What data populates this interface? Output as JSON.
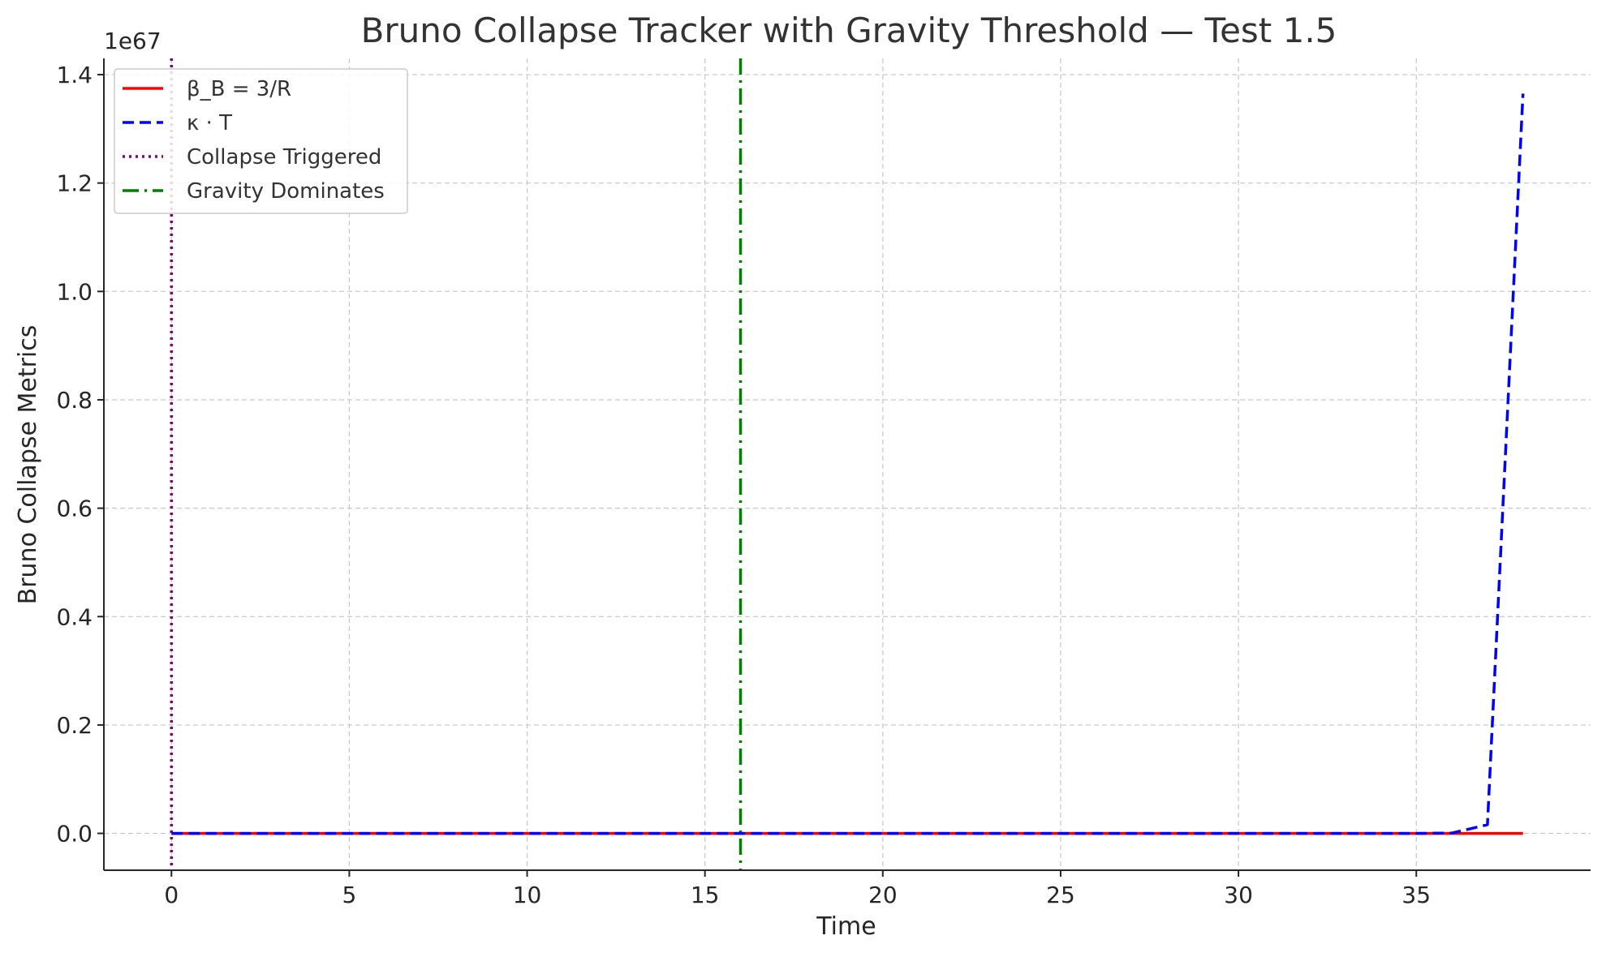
{
  "chart_data": {
    "type": "line",
    "title": "Bruno Collapse Tracker with Gravity Threshold — Test 1.5",
    "xlabel": "Time",
    "ylabel": "Bruno Collapse Metrics",
    "y_offset_label": "1e67",
    "y_scale_factor": 1e+67,
    "xlim": [
      -1.9,
      39.9
    ],
    "ylim": [
      -0.068,
      1.43
    ],
    "x_ticks": [
      0,
      5,
      10,
      15,
      20,
      25,
      30,
      35
    ],
    "y_ticks": [
      0.0,
      0.2,
      0.4,
      0.6,
      0.8,
      1.0,
      1.2,
      1.4
    ],
    "y_tick_labels": [
      "0.0",
      "0.2",
      "0.4",
      "0.6",
      "0.8",
      "1.0",
      "1.2",
      "1.4"
    ],
    "grid": true,
    "legend_position": "top-left",
    "series": [
      {
        "name": "β_B = 3/R",
        "style": "solid",
        "color": "#ff0000",
        "x": [
          0,
          5,
          10,
          15,
          20,
          25,
          30,
          35,
          36,
          37,
          38
        ],
        "y": [
          0,
          0,
          0,
          0,
          0,
          0,
          0,
          0,
          0,
          0,
          0
        ]
      },
      {
        "name": "κ · T",
        "style": "dashed",
        "color": "#0000ff",
        "x": [
          0,
          5,
          10,
          15,
          20,
          25,
          30,
          35,
          36,
          37,
          38
        ],
        "y": [
          0,
          0,
          0,
          0,
          0,
          0,
          0,
          0,
          0.0005,
          0.016,
          1.365
        ]
      }
    ],
    "vlines": [
      {
        "name": "Collapse Triggered",
        "x": 0,
        "style": "dotted",
        "color": "#800080"
      },
      {
        "name": "Gravity Dominates",
        "x": 16,
        "style": "dashdot",
        "color": "#008000"
      }
    ]
  }
}
